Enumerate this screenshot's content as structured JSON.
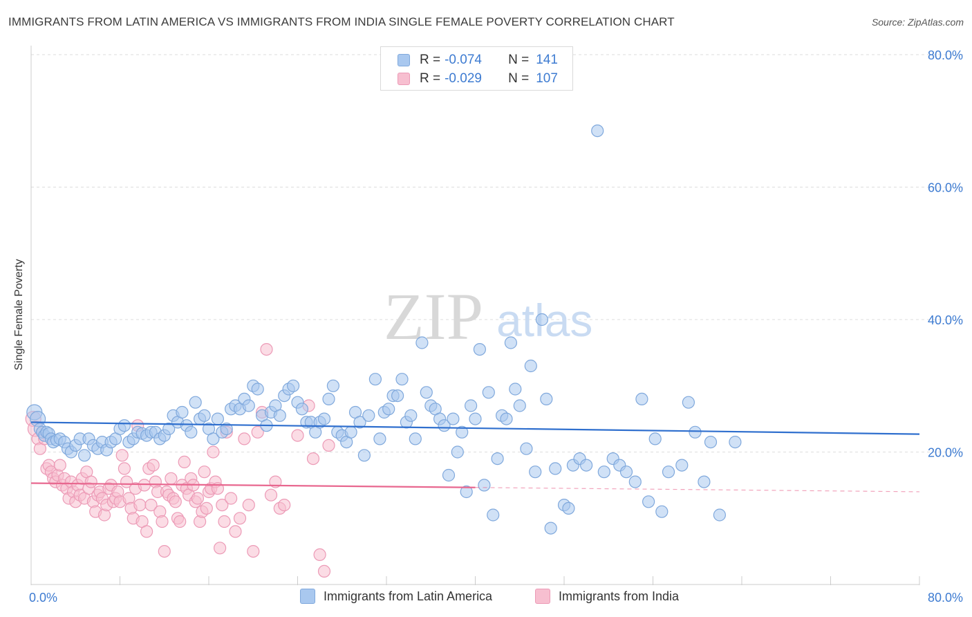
{
  "title": "IMMIGRANTS FROM LATIN AMERICA VS IMMIGRANTS FROM INDIA SINGLE FEMALE POVERTY CORRELATION CHART",
  "source": "Source: ZipAtlas.com",
  "watermark": {
    "zip": "ZIP",
    "atlas": "atlas"
  },
  "colors": {
    "blue_fill": "#a9c8ef",
    "blue_stroke": "#7fa8dc",
    "blue_line": "#2f6fce",
    "pink_fill": "#f7bfd0",
    "pink_stroke": "#ec9ab6",
    "pink_line": "#e8678f",
    "axis_text": "#3d7bd1",
    "grid": "#dddddd"
  },
  "legend": {
    "rows": [
      {
        "r_label": "R =",
        "r_value": "-0.074",
        "n_label": "N =",
        "n_value": "141"
      },
      {
        "r_label": "R =",
        "r_value": "-0.029",
        "n_label": "N =",
        "n_value": "107"
      }
    ]
  },
  "bottom_legend": [
    "Immigrants from Latin America",
    "Immigrants from India"
  ],
  "chart_data": {
    "type": "scatter",
    "title": "IMMIGRANTS FROM LATIN AMERICA VS IMMIGRANTS FROM INDIA SINGLE FEMALE POVERTY CORRELATION CHART",
    "xlabel": "",
    "ylabel": "Single Female Poverty",
    "xlim": [
      0,
      80
    ],
    "ylim": [
      0,
      80
    ],
    "x_tick_labels": [
      "0.0%",
      "80.0%"
    ],
    "y_ticks": [
      20,
      40,
      60,
      80
    ],
    "y_tick_labels": [
      "20.0%",
      "40.0%",
      "60.0%",
      "80.0%"
    ],
    "grid": true,
    "legend_position": "top-center",
    "series": [
      {
        "name": "Immigrants from Latin America",
        "r": -0.074,
        "n": 141,
        "trend": {
          "x": [
            0,
            80
          ],
          "y": [
            24.5,
            22.7
          ],
          "dashed_from": null
        },
        "points": [
          [
            0.3,
            26.0
          ],
          [
            0.6,
            25.0
          ],
          [
            0.8,
            23.5
          ],
          [
            1.0,
            23.0
          ],
          [
            1.2,
            22.5
          ],
          [
            1.4,
            23.0
          ],
          [
            1.6,
            22.8
          ],
          [
            1.8,
            22.0
          ],
          [
            2.0,
            21.5
          ],
          [
            2.3,
            21.8
          ],
          [
            2.6,
            22.0
          ],
          [
            3.0,
            21.5
          ],
          [
            3.3,
            20.5
          ],
          [
            3.6,
            20.0
          ],
          [
            4.0,
            21.0
          ],
          [
            4.4,
            22.0
          ],
          [
            4.8,
            19.5
          ],
          [
            5.2,
            22.0
          ],
          [
            5.6,
            21.0
          ],
          [
            6.0,
            20.5
          ],
          [
            6.4,
            21.5
          ],
          [
            6.8,
            20.3
          ],
          [
            7.2,
            21.5
          ],
          [
            7.6,
            22.0
          ],
          [
            8.0,
            23.5
          ],
          [
            8.4,
            24.0
          ],
          [
            8.8,
            21.5
          ],
          [
            9.2,
            22.0
          ],
          [
            9.6,
            23.0
          ],
          [
            10.0,
            22.8
          ],
          [
            10.4,
            22.5
          ],
          [
            10.8,
            23.0
          ],
          [
            11.2,
            23.0
          ],
          [
            11.6,
            22.0
          ],
          [
            12.0,
            22.5
          ],
          [
            12.4,
            23.5
          ],
          [
            12.8,
            25.5
          ],
          [
            13.2,
            24.5
          ],
          [
            13.6,
            26.0
          ],
          [
            14.0,
            24.0
          ],
          [
            14.4,
            23.0
          ],
          [
            14.8,
            27.5
          ],
          [
            15.2,
            25.0
          ],
          [
            15.6,
            25.5
          ],
          [
            16.0,
            23.5
          ],
          [
            16.4,
            22.0
          ],
          [
            16.8,
            25.0
          ],
          [
            17.2,
            23.0
          ],
          [
            17.6,
            23.5
          ],
          [
            18.0,
            26.5
          ],
          [
            18.4,
            27.0
          ],
          [
            18.8,
            26.5
          ],
          [
            19.2,
            28.0
          ],
          [
            19.6,
            27.0
          ],
          [
            20.0,
            30.0
          ],
          [
            20.4,
            29.5
          ],
          [
            20.8,
            25.5
          ],
          [
            21.2,
            24.0
          ],
          [
            21.6,
            26.0
          ],
          [
            22.0,
            27.0
          ],
          [
            22.4,
            25.5
          ],
          [
            22.8,
            28.5
          ],
          [
            23.2,
            29.5
          ],
          [
            23.6,
            30.0
          ],
          [
            24.0,
            27.5
          ],
          [
            24.4,
            26.5
          ],
          [
            24.8,
            24.5
          ],
          [
            25.2,
            24.5
          ],
          [
            25.6,
            23.0
          ],
          [
            26.0,
            24.5
          ],
          [
            26.4,
            25.0
          ],
          [
            26.8,
            28.0
          ],
          [
            27.2,
            30.0
          ],
          [
            27.6,
            23.0
          ],
          [
            28.0,
            22.5
          ],
          [
            28.4,
            21.5
          ],
          [
            28.8,
            23.0
          ],
          [
            29.2,
            26.0
          ],
          [
            29.6,
            24.5
          ],
          [
            30.0,
            19.5
          ],
          [
            30.4,
            25.5
          ],
          [
            31.0,
            31.0
          ],
          [
            31.4,
            22.0
          ],
          [
            31.8,
            26.0
          ],
          [
            32.2,
            26.5
          ],
          [
            32.6,
            28.5
          ],
          [
            33.0,
            28.5
          ],
          [
            33.4,
            31.0
          ],
          [
            33.8,
            24.5
          ],
          [
            34.2,
            25.5
          ],
          [
            34.6,
            22.0
          ],
          [
            35.2,
            36.5
          ],
          [
            35.6,
            29.0
          ],
          [
            36.0,
            27.0
          ],
          [
            36.4,
            26.5
          ],
          [
            36.8,
            25.0
          ],
          [
            37.2,
            24.0
          ],
          [
            37.6,
            16.5
          ],
          [
            38.0,
            25.0
          ],
          [
            38.4,
            20.0
          ],
          [
            38.8,
            23.0
          ],
          [
            39.2,
            14.0
          ],
          [
            39.6,
            27.0
          ],
          [
            40.0,
            25.0
          ],
          [
            40.4,
            35.5
          ],
          [
            40.8,
            15.0
          ],
          [
            41.2,
            29.0
          ],
          [
            41.6,
            10.5
          ],
          [
            42.0,
            19.0
          ],
          [
            42.4,
            25.5
          ],
          [
            42.8,
            25.0
          ],
          [
            43.2,
            36.5
          ],
          [
            43.6,
            29.5
          ],
          [
            44.0,
            27.0
          ],
          [
            44.6,
            20.5
          ],
          [
            45.0,
            33.0
          ],
          [
            45.4,
            17.0
          ],
          [
            46.0,
            40.0
          ],
          [
            46.4,
            28.0
          ],
          [
            46.8,
            8.5
          ],
          [
            47.2,
            17.5
          ],
          [
            48.0,
            12.0
          ],
          [
            48.4,
            11.5
          ],
          [
            48.8,
            18.0
          ],
          [
            49.4,
            19.0
          ],
          [
            50.0,
            18.0
          ],
          [
            51.0,
            68.5
          ],
          [
            51.6,
            17.0
          ],
          [
            52.4,
            19.0
          ],
          [
            53.0,
            18.0
          ],
          [
            53.6,
            17.0
          ],
          [
            54.4,
            15.5
          ],
          [
            55.0,
            28.0
          ],
          [
            55.6,
            12.5
          ],
          [
            56.2,
            22.0
          ],
          [
            56.8,
            11.0
          ],
          [
            57.4,
            17.0
          ],
          [
            58.6,
            18.0
          ],
          [
            59.2,
            27.5
          ],
          [
            59.8,
            23.0
          ],
          [
            60.6,
            15.5
          ],
          [
            61.2,
            21.5
          ],
          [
            62.0,
            10.5
          ],
          [
            63.4,
            21.5
          ]
        ]
      },
      {
        "name": "Immigrants from India",
        "r": -0.029,
        "n": 107,
        "trend": {
          "x": [
            0,
            80
          ],
          "y": [
            15.3,
            14.0
          ],
          "dashed_from": 40
        },
        "points": [
          [
            0.2,
            25.0
          ],
          [
            0.4,
            23.5
          ],
          [
            0.6,
            22.0
          ],
          [
            0.8,
            20.5
          ],
          [
            1.0,
            23.0
          ],
          [
            1.2,
            22.0
          ],
          [
            1.4,
            17.5
          ],
          [
            1.6,
            18.0
          ],
          [
            1.8,
            17.0
          ],
          [
            2.0,
            16.0
          ],
          [
            2.2,
            15.5
          ],
          [
            2.4,
            16.5
          ],
          [
            2.6,
            18.0
          ],
          [
            2.8,
            15.0
          ],
          [
            3.0,
            16.0
          ],
          [
            3.2,
            14.5
          ],
          [
            3.4,
            13.0
          ],
          [
            3.6,
            15.5
          ],
          [
            3.8,
            14.0
          ],
          [
            4.0,
            12.5
          ],
          [
            4.2,
            15.0
          ],
          [
            4.4,
            13.5
          ],
          [
            4.6,
            16.0
          ],
          [
            4.8,
            13.0
          ],
          [
            5.0,
            17.0
          ],
          [
            5.2,
            14.5
          ],
          [
            5.4,
            15.5
          ],
          [
            5.6,
            12.5
          ],
          [
            5.8,
            11.0
          ],
          [
            6.0,
            13.5
          ],
          [
            6.2,
            14.0
          ],
          [
            6.4,
            13.0
          ],
          [
            6.6,
            10.5
          ],
          [
            6.8,
            12.0
          ],
          [
            7.0,
            14.5
          ],
          [
            7.2,
            15.0
          ],
          [
            7.4,
            12.5
          ],
          [
            7.6,
            13.0
          ],
          [
            7.8,
            14.0
          ],
          [
            8.0,
            12.5
          ],
          [
            8.2,
            19.5
          ],
          [
            8.4,
            17.5
          ],
          [
            8.6,
            15.5
          ],
          [
            8.8,
            13.0
          ],
          [
            9.0,
            11.5
          ],
          [
            9.2,
            10.0
          ],
          [
            9.4,
            14.5
          ],
          [
            9.6,
            24.0
          ],
          [
            9.8,
            12.0
          ],
          [
            10.0,
            9.5
          ],
          [
            10.2,
            15.0
          ],
          [
            10.4,
            8.0
          ],
          [
            10.6,
            17.5
          ],
          [
            10.8,
            12.0
          ],
          [
            11.0,
            18.0
          ],
          [
            11.2,
            15.5
          ],
          [
            11.4,
            14.0
          ],
          [
            11.6,
            11.0
          ],
          [
            11.8,
            9.5
          ],
          [
            12.0,
            5.0
          ],
          [
            12.2,
            14.0
          ],
          [
            12.4,
            13.5
          ],
          [
            12.6,
            16.0
          ],
          [
            12.8,
            13.0
          ],
          [
            13.0,
            12.5
          ],
          [
            13.2,
            10.0
          ],
          [
            13.4,
            9.5
          ],
          [
            13.6,
            15.0
          ],
          [
            13.8,
            18.5
          ],
          [
            14.0,
            14.5
          ],
          [
            14.2,
            13.5
          ],
          [
            14.4,
            16.0
          ],
          [
            14.6,
            15.0
          ],
          [
            14.8,
            12.5
          ],
          [
            15.0,
            13.0
          ],
          [
            15.2,
            9.5
          ],
          [
            15.4,
            11.0
          ],
          [
            15.6,
            17.0
          ],
          [
            15.8,
            11.5
          ],
          [
            16.0,
            14.0
          ],
          [
            16.2,
            14.5
          ],
          [
            16.4,
            20.0
          ],
          [
            16.6,
            15.5
          ],
          [
            16.8,
            14.5
          ],
          [
            17.0,
            5.5
          ],
          [
            17.2,
            12.0
          ],
          [
            17.4,
            9.5
          ],
          [
            17.6,
            23.0
          ],
          [
            18.0,
            13.0
          ],
          [
            18.4,
            8.0
          ],
          [
            18.8,
            10.0
          ],
          [
            19.2,
            22.0
          ],
          [
            19.6,
            12.0
          ],
          [
            20.0,
            5.0
          ],
          [
            20.4,
            23.0
          ],
          [
            20.8,
            26.0
          ],
          [
            21.2,
            35.5
          ],
          [
            21.6,
            13.5
          ],
          [
            22.0,
            15.5
          ],
          [
            22.4,
            11.5
          ],
          [
            22.8,
            12.0
          ],
          [
            24.0,
            22.5
          ],
          [
            25.0,
            27.0
          ],
          [
            25.4,
            19.0
          ],
          [
            26.0,
            4.5
          ],
          [
            26.4,
            2.0
          ],
          [
            26.8,
            21.0
          ]
        ]
      }
    ]
  }
}
